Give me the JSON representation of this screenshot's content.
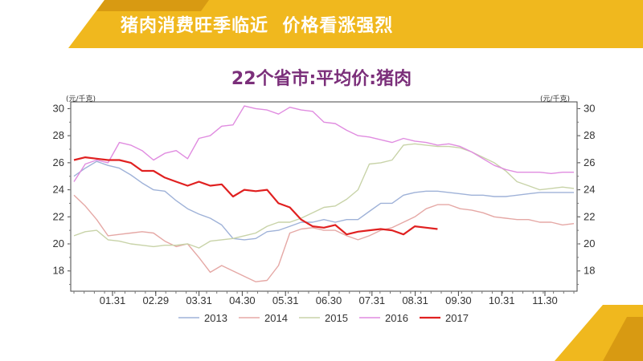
{
  "banner": {
    "title": "猪肉消费旺季临近  价格看涨强烈"
  },
  "chart_data": {
    "type": "line",
    "title": "22个省市:平均价:猪肉",
    "unit_left": "(元/千克)",
    "unit_right": "(元/千克)",
    "xlabel": "",
    "ylabel": "",
    "x_ticks": [
      "01.31",
      "02.29",
      "03.31",
      "04.30",
      "05.31",
      "06.30",
      "07.31",
      "08.31",
      "09.30",
      "10.31",
      "11.30"
    ],
    "ylim": [
      16.5,
      30.5
    ],
    "y_ticks": [
      "30",
      "28",
      "26",
      "24",
      "22",
      "20",
      "18"
    ],
    "y_tick_values": [
      30,
      28,
      26,
      24,
      22,
      20,
      18
    ],
    "grid": false,
    "legend_position": "bottom",
    "series": [
      {
        "name": "2013",
        "color": "#9fb2d8",
        "values": [
          25.0,
          25.6,
          26.1,
          25.8,
          25.6,
          25.1,
          24.5,
          24.0,
          23.9,
          23.2,
          22.6,
          22.2,
          21.9,
          21.4,
          20.4,
          20.3,
          20.4,
          20.9,
          21.0,
          21.3,
          21.6,
          21.6,
          21.8,
          21.6,
          21.8,
          21.8,
          22.4,
          23.0,
          23.0,
          23.6,
          23.8,
          23.9,
          23.9,
          23.8,
          23.7,
          23.6,
          23.6,
          23.5,
          23.5,
          23.6,
          23.7,
          23.8,
          23.8,
          23.8,
          23.8
        ]
      },
      {
        "name": "2014",
        "color": "#e5a8a5",
        "values": [
          23.6,
          22.8,
          21.8,
          20.6,
          20.7,
          20.8,
          20.9,
          20.8,
          20.2,
          19.8,
          20.0,
          19.0,
          17.9,
          18.4,
          18.0,
          17.6,
          17.2,
          17.3,
          18.4,
          20.8,
          21.1,
          21.2,
          21.0,
          21.0,
          20.6,
          20.3,
          20.6,
          21.0,
          21.2,
          21.6,
          22.0,
          22.6,
          22.9,
          22.9,
          22.6,
          22.5,
          22.3,
          22.0,
          21.9,
          21.8,
          21.8,
          21.6,
          21.6,
          21.4,
          21.5
        ]
      },
      {
        "name": "2015",
        "color": "#c8d3a8",
        "values": [
          20.6,
          20.9,
          21.0,
          20.3,
          20.2,
          20.0,
          19.9,
          19.8,
          19.9,
          19.9,
          20.0,
          19.7,
          20.2,
          20.3,
          20.4,
          20.6,
          20.8,
          21.3,
          21.6,
          21.6,
          21.9,
          22.3,
          22.7,
          22.8,
          23.3,
          24.0,
          25.9,
          26.0,
          26.2,
          27.3,
          27.4,
          27.3,
          27.2,
          27.2,
          27.1,
          26.8,
          26.4,
          26.0,
          25.4,
          24.6,
          24.3,
          24.0,
          24.1,
          24.2,
          24.1
        ]
      },
      {
        "name": "2016",
        "color": "#e08ce0",
        "values": [
          24.6,
          25.9,
          26.2,
          26.0,
          27.5,
          27.3,
          26.9,
          26.2,
          26.7,
          26.9,
          26.3,
          27.8,
          28.0,
          28.7,
          28.8,
          30.2,
          30.0,
          29.9,
          29.6,
          30.1,
          29.9,
          29.8,
          29.0,
          28.9,
          28.4,
          28.0,
          27.9,
          27.7,
          27.5,
          27.8,
          27.6,
          27.5,
          27.3,
          27.4,
          27.2,
          26.8,
          26.3,
          25.8,
          25.5,
          25.3,
          25.3,
          25.3,
          25.2,
          25.3,
          25.3
        ]
      },
      {
        "name": "2017",
        "color": "#e02020",
        "values": [
          26.2,
          26.4,
          26.3,
          26.2,
          26.2,
          26.0,
          25.4,
          25.4,
          24.9,
          24.6,
          24.3,
          24.6,
          24.3,
          24.4,
          23.5,
          24.0,
          23.9,
          24.0,
          23.0,
          22.7,
          21.8,
          21.3,
          21.2,
          21.4,
          20.7,
          20.9,
          21.0,
          21.1,
          21.0,
          20.7,
          21.3,
          21.2,
          21.1
        ]
      }
    ]
  }
}
